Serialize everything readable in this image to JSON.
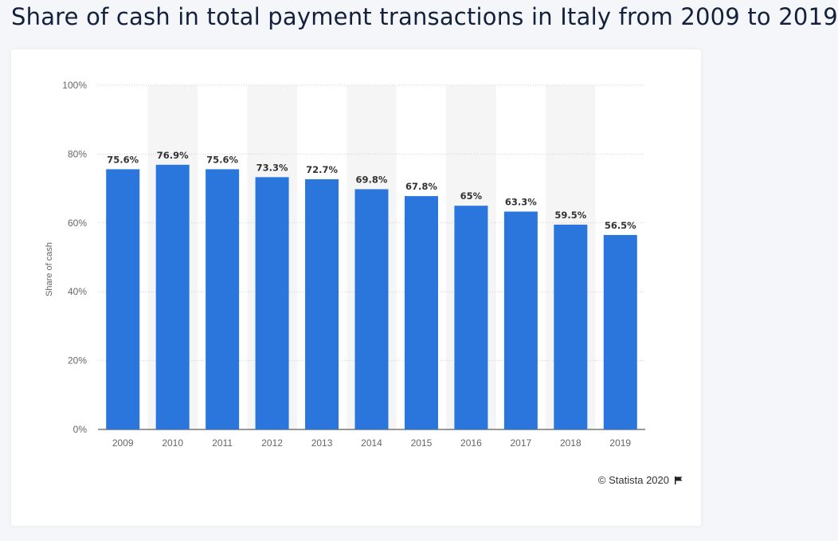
{
  "title": "Share of cash in total payment transactions in Italy from 2009 to 2019",
  "credit": "© Statista 2020",
  "icons": {
    "credit_flag": "flag-icon"
  },
  "colors": {
    "bar": "#2a76dd",
    "band": "#f5f5f5",
    "grid": "#cfcfcf"
  },
  "chart_data": {
    "type": "bar",
    "categories": [
      "2009",
      "2010",
      "2011",
      "2012",
      "2013",
      "2014",
      "2015",
      "2016",
      "2017",
      "2018",
      "2019"
    ],
    "values": [
      75.6,
      76.9,
      75.6,
      73.3,
      72.7,
      69.8,
      67.8,
      65,
      63.3,
      59.5,
      56.5
    ],
    "data_labels": [
      "75.6%",
      "76.9%",
      "75.6%",
      "73.3%",
      "72.7%",
      "69.8%",
      "67.8%",
      "65%",
      "63.3%",
      "59.5%",
      "56.5%"
    ],
    "ylabel": "Share of cash",
    "ylim": [
      0,
      100
    ],
    "yticks": [
      0,
      20,
      40,
      60,
      80,
      100
    ],
    "ytick_labels": [
      "0%",
      "20%",
      "40%",
      "60%",
      "80%",
      "100%"
    ],
    "grid": true
  }
}
